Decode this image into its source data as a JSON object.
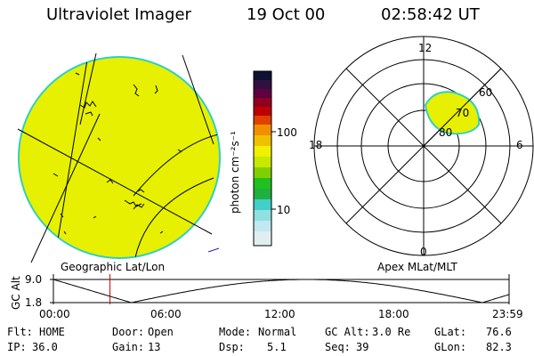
{
  "header": {
    "instrument": "Ultraviolet Imager",
    "date": "19 Oct 00",
    "time": "02:58:42 UT"
  },
  "colors": {
    "auroral_fill": "#e6f000",
    "limb_outline": "#30d0c0",
    "timeline_marker": "#cc0000",
    "colorbar": [
      "#d8e8f0",
      "#90e0e0",
      "#40d0c8",
      "#20c020",
      "#80d000",
      "#c8e800",
      "#f0f000",
      "#f0c000",
      "#f09000",
      "#e04000",
      "#c00000",
      "#900020",
      "#600040",
      "#301040",
      "#101030"
    ]
  },
  "colorbar": {
    "unit_label": "photon cm⁻²s⁻¹",
    "ticks": [
      "100",
      "10"
    ]
  },
  "map_left": {
    "caption": "Geographic Lat/Lon"
  },
  "map_right": {
    "caption": "Apex MLat/MLT",
    "mlt_labels": {
      "top": "12",
      "right": "6",
      "bottom": "0",
      "left": "18"
    },
    "mlat_labels": [
      "60",
      "70",
      "80"
    ]
  },
  "timeline": {
    "axis_label": "GC Alt",
    "y_ticks": [
      "9.0",
      "1.8"
    ],
    "x_ticks": [
      "00:00",
      "06:00",
      "12:00",
      "18:00",
      "23:59"
    ],
    "marker_time_hours": 2.98
  },
  "status": {
    "row1": [
      {
        "key": "Flt:",
        "value": "HOME"
      },
      {
        "key": "Door:",
        "value": "Open"
      },
      {
        "key": "Mode:",
        "value": "Normal"
      },
      {
        "key": "GC Alt:",
        "value": "3.0 Re"
      },
      {
        "key": "GLat:",
        "value": "76.6"
      }
    ],
    "row2": [
      {
        "key": "IP:",
        "value": "36.0"
      },
      {
        "key": "Gain:",
        "value": "13"
      },
      {
        "key": "Dsp:",
        "value": "5.1"
      },
      {
        "key": "Seq:",
        "value": "39"
      },
      {
        "key": "GLon:",
        "value": "82.3"
      }
    ]
  }
}
